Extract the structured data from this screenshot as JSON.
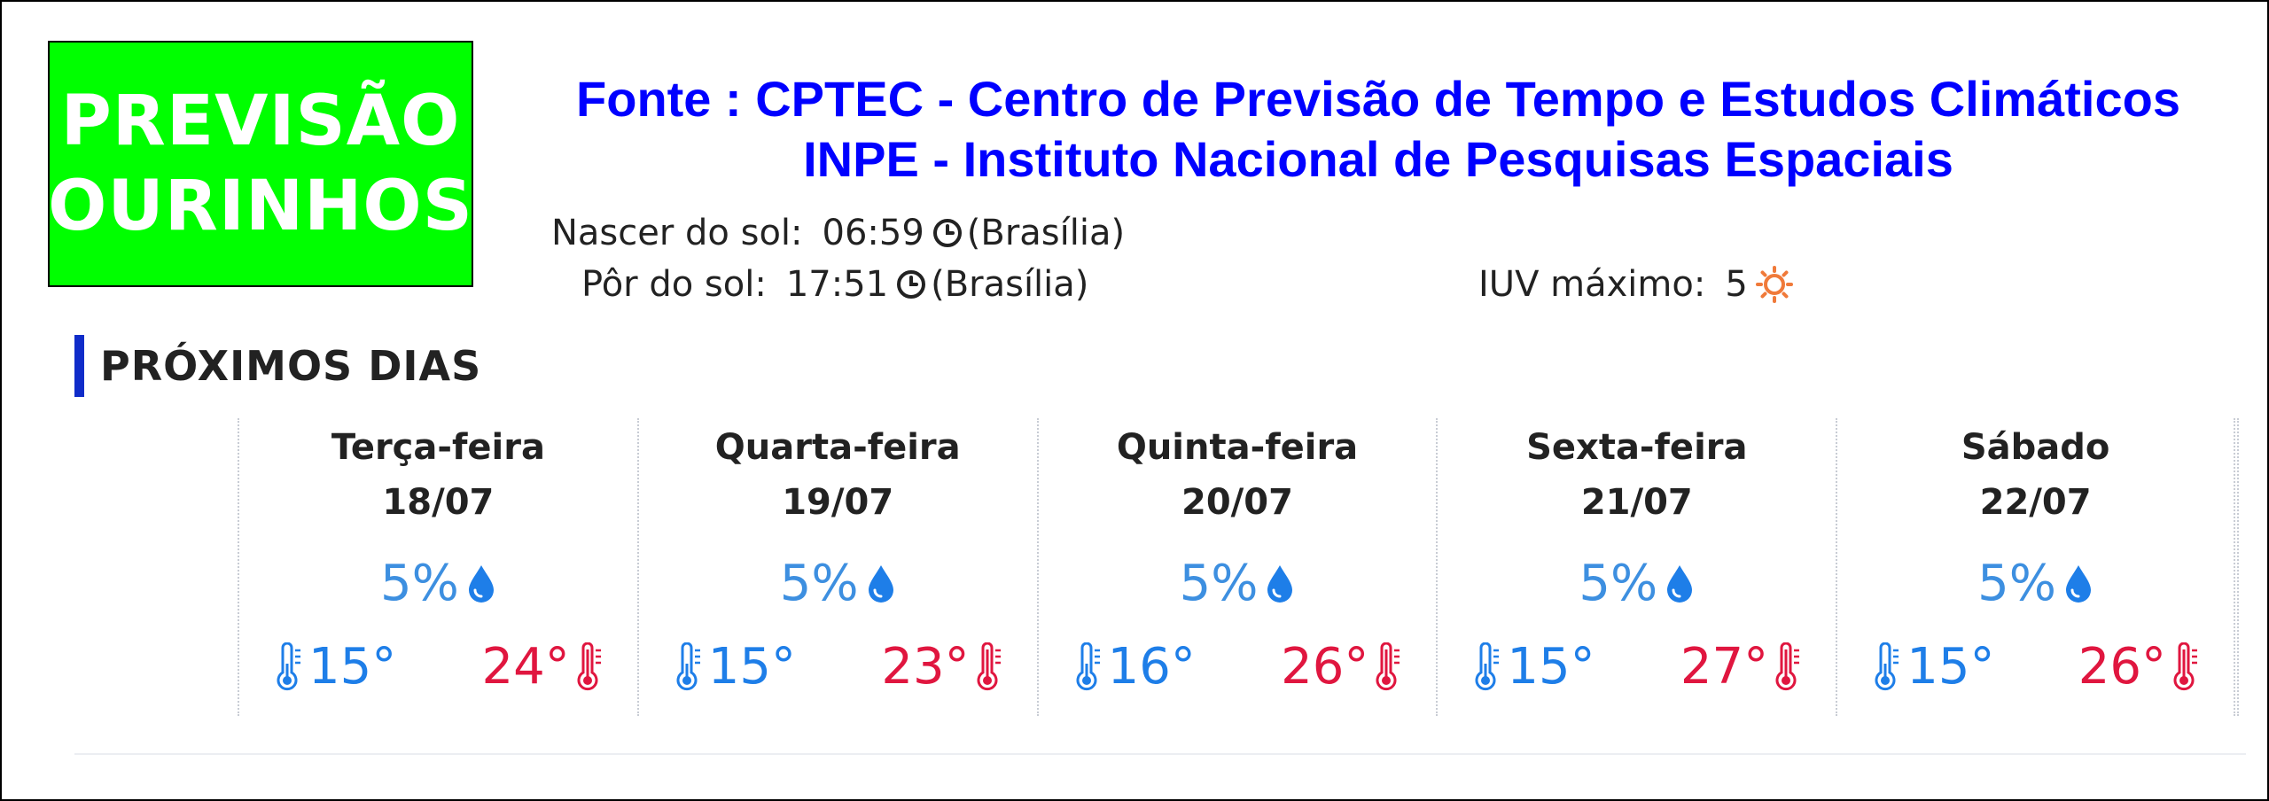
{
  "logo": {
    "line1": "PREVISÃO",
    "line2": "OURINHOS"
  },
  "source": {
    "line1": "Fonte : CPTEC - Centro de Previsão de Tempo e  Estudos Climáticos",
    "line2": "INPE   -  Instituto Nacional de Pesquisas Espaciais"
  },
  "sun": {
    "rise_label": "Nascer do sol:",
    "rise_time": "06:59",
    "rise_zone": "(Brasília)",
    "set_label": "Pôr do sol:",
    "set_time": "17:51",
    "set_zone": "(Brasília)",
    "uv_label": "IUV máximo:",
    "uv_value": "5"
  },
  "section_title": "PRÓXIMOS DIAS",
  "days": [
    {
      "name": "Terça-feira",
      "date": "18/07",
      "rain": "5%",
      "min": "15°",
      "max": "24°"
    },
    {
      "name": "Quarta-feira",
      "date": "19/07",
      "rain": "5%",
      "min": "15°",
      "max": "23°"
    },
    {
      "name": "Quinta-feira",
      "date": "20/07",
      "rain": "5%",
      "min": "16°",
      "max": "26°"
    },
    {
      "name": "Sexta-feira",
      "date": "21/07",
      "rain": "5%",
      "min": "15°",
      "max": "27°"
    },
    {
      "name": "Sábado",
      "date": "22/07",
      "rain": "5%",
      "min": "15°",
      "max": "26°"
    }
  ],
  "icons": {
    "clock": "clock-icon",
    "uv": "sun-icon",
    "rain": "water-drop-icon",
    "min": "thermometer-low-icon",
    "max": "thermometer-high-icon"
  },
  "colors": {
    "logo_bg": "#00ff00",
    "source_text": "#0000ff",
    "section_bar": "#0f2cc9",
    "rain": "#3d8fe0",
    "min_temp": "#1e7ee8",
    "max_temp": "#e0163f",
    "uv_icon": "#f07a3a"
  }
}
